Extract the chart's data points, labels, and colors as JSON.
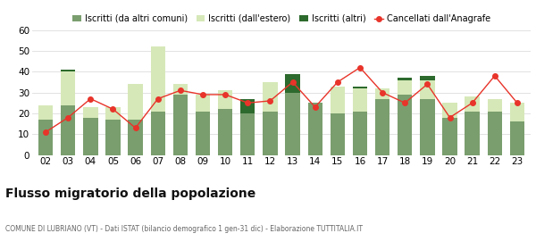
{
  "years": [
    "02",
    "03",
    "04",
    "05",
    "06",
    "07",
    "08",
    "09",
    "10",
    "11",
    "12",
    "13",
    "14",
    "15",
    "16",
    "17",
    "18",
    "19",
    "20",
    "21",
    "22",
    "23"
  ],
  "iscritti_altri_comuni": [
    17,
    24,
    18,
    17,
    17,
    21,
    29,
    21,
    22,
    20,
    21,
    30,
    25,
    20,
    21,
    27,
    29,
    27,
    18,
    21,
    21,
    16
  ],
  "iscritti_estero": [
    7,
    16,
    5,
    6,
    17,
    31,
    5,
    8,
    9,
    0,
    14,
    0,
    0,
    13,
    11,
    5,
    7,
    9,
    7,
    7,
    6,
    9
  ],
  "iscritti_altri": [
    0,
    1,
    0,
    0,
    0,
    0,
    0,
    0,
    0,
    7,
    0,
    9,
    0,
    0,
    1,
    0,
    1,
    2,
    0,
    0,
    0,
    0
  ],
  "cancellati": [
    11,
    18,
    27,
    22,
    13,
    27,
    31,
    29,
    29,
    25,
    26,
    35,
    23,
    35,
    42,
    30,
    25,
    34,
    18,
    25,
    38,
    25
  ],
  "color_altri_comuni": "#7a9e6e",
  "color_estero": "#d6e8b8",
  "color_altri": "#2d6a2d",
  "color_cancellati": "#e8342a",
  "ylim": [
    0,
    60
  ],
  "yticks": [
    0,
    10,
    20,
    30,
    40,
    50,
    60
  ],
  "title": "Flusso migratorio della popolazione",
  "subtitle": "COMUNE DI LUBRIANO (VT) - Dati ISTAT (bilancio demografico 1 gen-31 dic) - Elaborazione TUTTITALIA.IT",
  "legend_labels": [
    "Iscritti (da altri comuni)",
    "Iscritti (dall'estero)",
    "Iscritti (altri)",
    "Cancellati dall'Anagrafe"
  ],
  "background_color": "#ffffff",
  "grid_color": "#dddddd",
  "title_fontsize": 10,
  "subtitle_fontsize": 5.5,
  "tick_fontsize": 7.5,
  "legend_fontsize": 7
}
